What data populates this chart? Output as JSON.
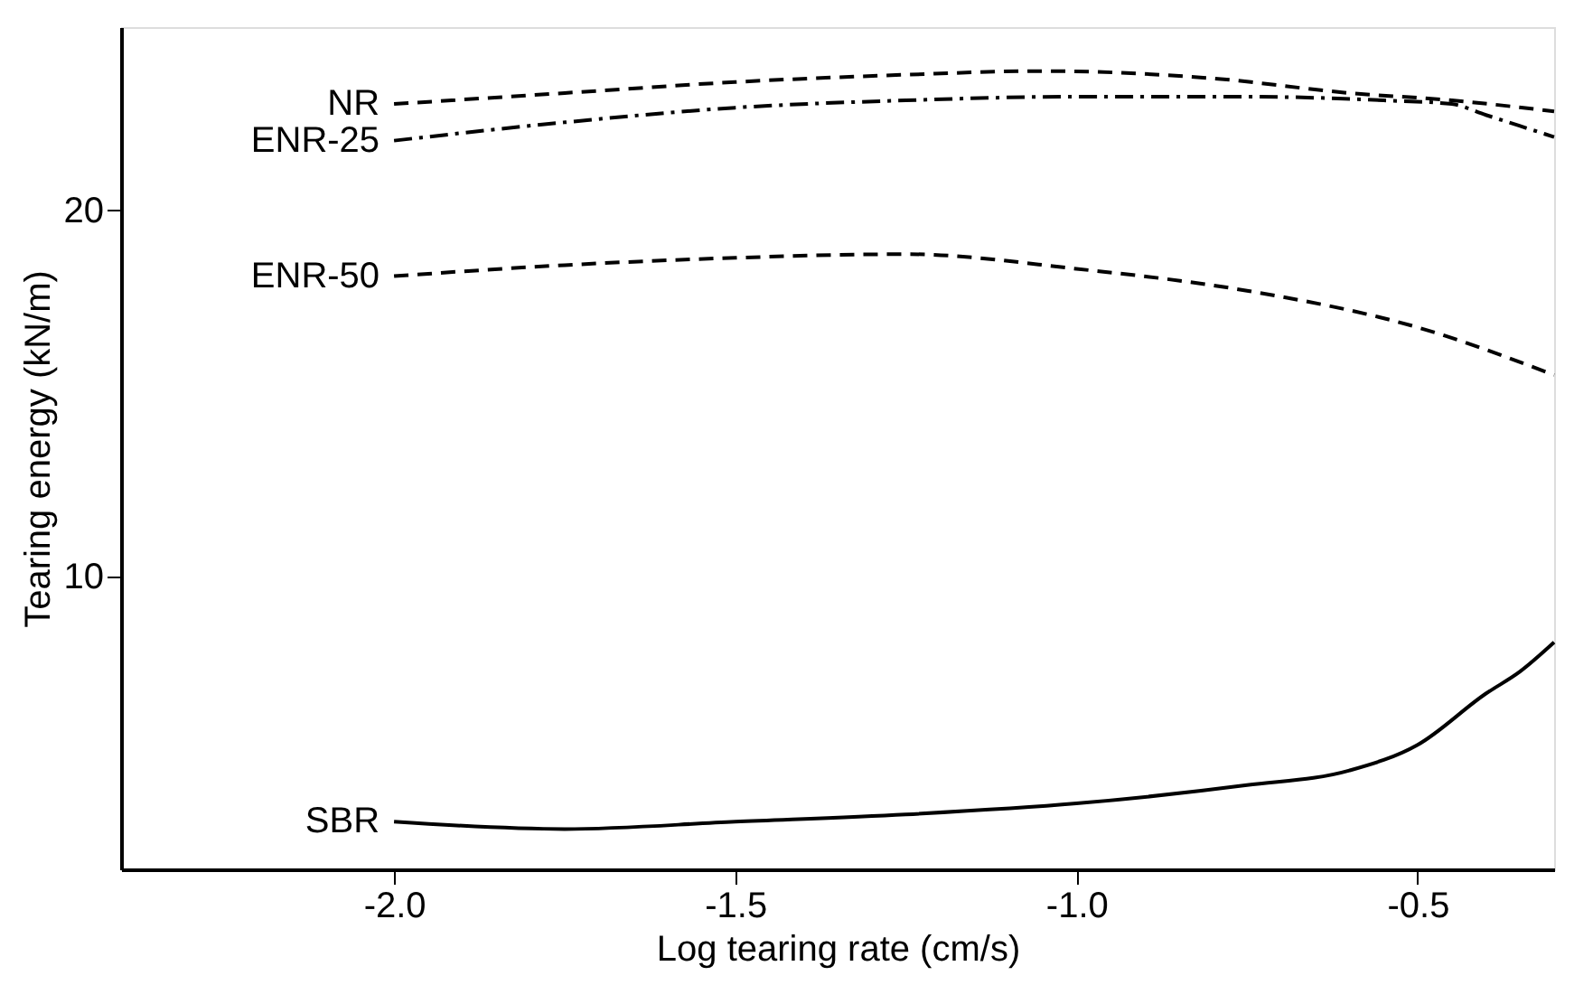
{
  "chart_data": {
    "type": "line",
    "xlabel": "Log tearing rate (cm/s)",
    "ylabel": "Tearing energy (kN/m)",
    "xlim": [
      -2.4,
      -0.3
    ],
    "ylim": [
      2,
      25
    ],
    "xticks": [
      {
        "value": -2.0,
        "label": "-2.0"
      },
      {
        "value": -1.5,
        "label": "-1.5"
      },
      {
        "value": -1.0,
        "label": "-1.0"
      },
      {
        "value": -0.5,
        "label": "-0.5"
      }
    ],
    "yticks": [
      10,
      20
    ],
    "marker": "none",
    "series": [
      {
        "name": "NR",
        "color": "#000000",
        "line_style": "dashed",
        "x": [
          -2.0,
          -1.75,
          -1.5,
          -1.25,
          -1.05,
          -0.8,
          -0.6,
          -0.45,
          -0.3
        ],
        "values": [
          22.9,
          23.2,
          23.5,
          23.7,
          23.8,
          23.6,
          23.2,
          23.0,
          22.7
        ]
      },
      {
        "name": "ENR-25",
        "color": "#000000",
        "line_style": "dashdot",
        "x": [
          -2.0,
          -1.75,
          -1.5,
          -1.25,
          -1.0,
          -0.75,
          -0.55,
          -0.45,
          -0.4,
          -0.3
        ],
        "values": [
          21.9,
          22.4,
          22.8,
          23.0,
          23.1,
          23.1,
          23.0,
          22.9,
          22.6,
          22.0
        ]
      },
      {
        "name": "ENR-50",
        "color": "#000000",
        "line_style": "dashed",
        "x": [
          -2.0,
          -1.75,
          -1.5,
          -1.25,
          -1.0,
          -0.75,
          -0.5,
          -0.3
        ],
        "values": [
          18.2,
          18.5,
          18.7,
          18.8,
          18.4,
          17.8,
          16.8,
          15.5
        ]
      },
      {
        "name": "SBR",
        "color": "#000000",
        "line_style": "solid",
        "x": [
          -2.0,
          -1.75,
          -1.5,
          -1.25,
          -1.0,
          -0.75,
          -0.6,
          -0.5,
          -0.4,
          -0.35,
          -0.3
        ],
        "values": [
          3.3,
          3.1,
          3.3,
          3.5,
          3.8,
          4.3,
          4.7,
          5.4,
          6.8,
          7.4,
          8.2
        ]
      }
    ]
  }
}
